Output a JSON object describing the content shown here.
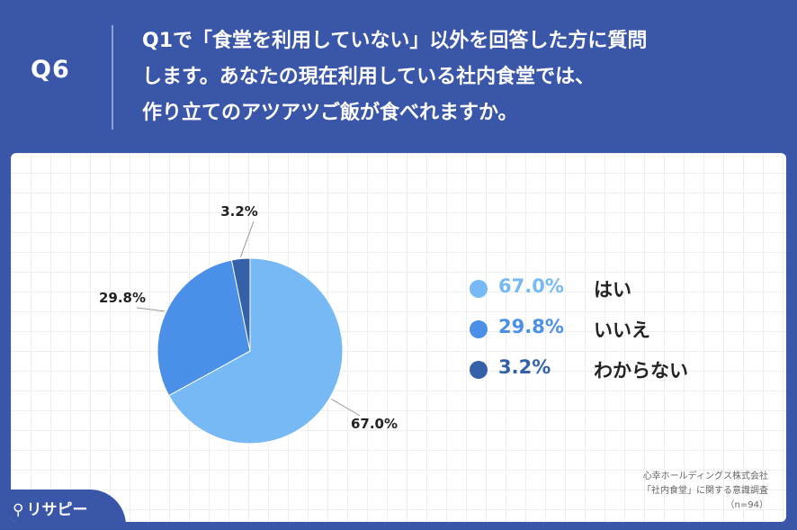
{
  "header": {
    "question_number": "Q6",
    "question_lines": [
      "Q1で「食堂を利用していない」以外を回答した方に質問",
      "します。あなたの現在利用している社内食堂では、",
      "作り立てのアツアツご飯が食べれますか。"
    ]
  },
  "chart_data": {
    "type": "pie",
    "categories": [
      "はい",
      "いいえ",
      "わからない"
    ],
    "values": [
      67.0,
      29.8,
      3.2
    ],
    "value_labels": [
      "67.0%",
      "29.8%",
      "3.2%"
    ],
    "colors": [
      "#76b9f5",
      "#4a8fe8",
      "#3461a8"
    ],
    "start_angle_deg": 0,
    "legend_placement": "right"
  },
  "source": {
    "company": "心幸ホールディングス株式会社",
    "survey": "「社内食堂」に関する意識調査",
    "n": "（n=94）"
  },
  "brand": {
    "name": "リサピー"
  }
}
